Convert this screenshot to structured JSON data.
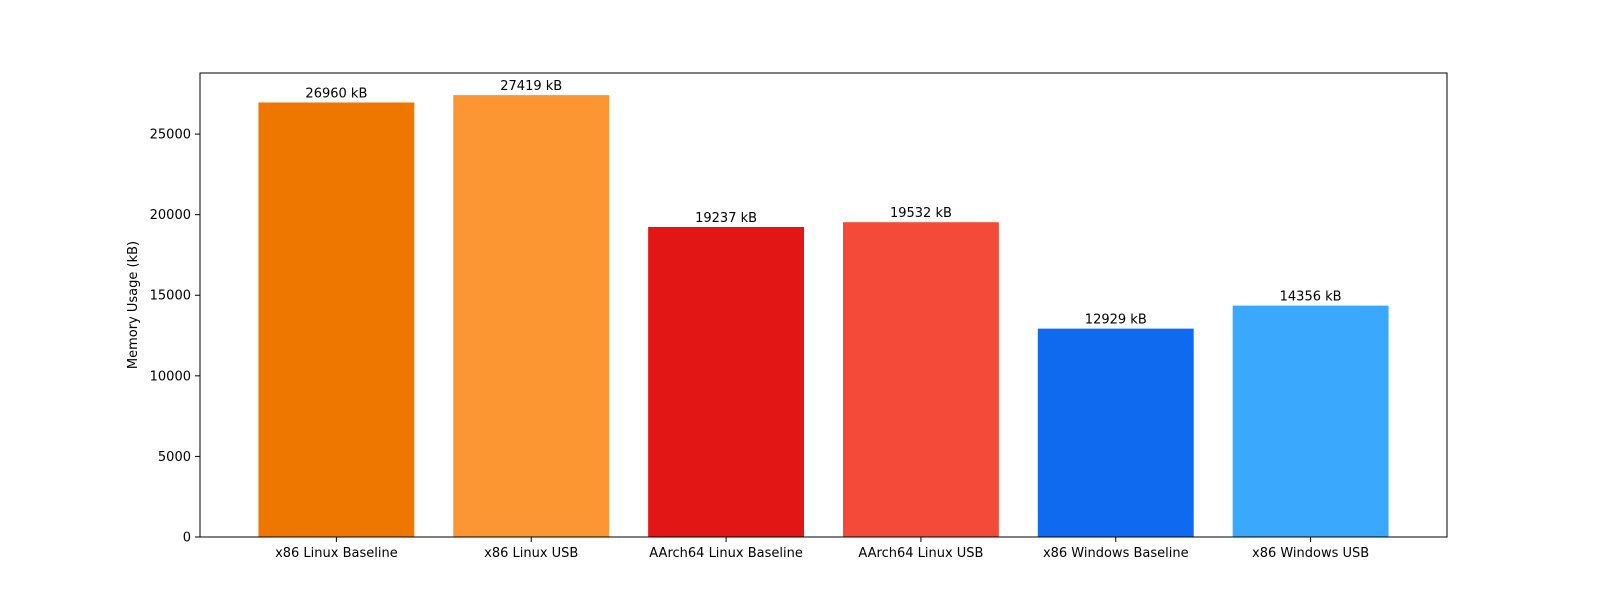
{
  "chart_data": {
    "type": "bar",
    "title": "",
    "xlabel": "",
    "ylabel": "Memory Usage (kB)",
    "categories": [
      "x86 Linux Baseline",
      "x86 Linux USB",
      "AArch64 Linux Baseline",
      "AArch64 Linux USB",
      "x86 Windows Baseline",
      "x86 Windows USB"
    ],
    "values": [
      26960,
      27419,
      19237,
      19532,
      12929,
      14356
    ],
    "data_labels": [
      "26960 kB",
      "27419 kB",
      "19237 kB",
      "19532 kB",
      "12929 kB",
      "14356 kB"
    ],
    "colors": [
      "#ee7700",
      "#fb9632",
      "#e31616",
      "#f44a3a",
      "#106aef",
      "#3aa8fc"
    ],
    "yticks": [
      0,
      5000,
      10000,
      15000,
      20000,
      25000
    ],
    "ylim": [
      0,
      28790
    ],
    "grid": false,
    "legend": "none"
  }
}
